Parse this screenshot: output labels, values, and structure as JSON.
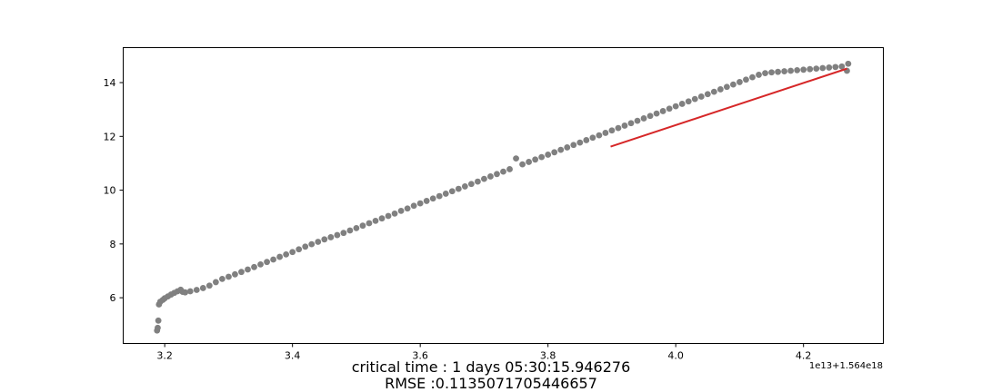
{
  "chart_data": {
    "type": "scatter",
    "title": "",
    "xlabel": "",
    "ylabel": "",
    "x_offset_label": "1e13+1.564e18",
    "xlim": [
      3.135,
      4.325
    ],
    "ylim": [
      4.3,
      15.3
    ],
    "x_ticks": [
      3.2,
      3.4,
      3.6,
      3.8,
      4.0,
      4.2
    ],
    "x_tick_labels": [
      "3.2",
      "3.4",
      "3.6",
      "3.8",
      "4.0",
      "4.2"
    ],
    "y_ticks": [
      6,
      8,
      10,
      12,
      14
    ],
    "y_tick_labels": [
      "6",
      "8",
      "10",
      "12",
      "14"
    ],
    "grid": false,
    "marker_color": "#808080",
    "series": [
      {
        "kind": "points",
        "color": "#808080",
        "points": [
          [
            3.188,
            4.78
          ],
          [
            3.189,
            4.88
          ],
          [
            3.19,
            5.15
          ],
          [
            3.191,
            5.75
          ],
          [
            3.193,
            5.85
          ],
          [
            3.197,
            5.92
          ],
          [
            3.2,
            5.98
          ],
          [
            3.205,
            6.05
          ],
          [
            3.21,
            6.12
          ],
          [
            3.215,
            6.18
          ],
          [
            3.22,
            6.24
          ],
          [
            3.225,
            6.3
          ],
          [
            3.228,
            6.22
          ],
          [
            3.232,
            6.2
          ],
          [
            3.24,
            6.24
          ],
          [
            3.25,
            6.29
          ],
          [
            3.26,
            6.36
          ],
          [
            3.27,
            6.45
          ],
          [
            3.28,
            6.58
          ],
          [
            3.29,
            6.7
          ],
          [
            3.3,
            6.78
          ],
          [
            3.31,
            6.87
          ],
          [
            3.32,
            6.96
          ],
          [
            3.33,
            7.05
          ],
          [
            3.34,
            7.14
          ],
          [
            3.35,
            7.24
          ],
          [
            3.36,
            7.33
          ],
          [
            3.37,
            7.42
          ],
          [
            3.38,
            7.52
          ],
          [
            3.39,
            7.61
          ],
          [
            3.4,
            7.7
          ],
          [
            3.41,
            7.8
          ],
          [
            3.42,
            7.9
          ],
          [
            3.43,
            7.99
          ],
          [
            3.44,
            8.08
          ],
          [
            3.45,
            8.17
          ],
          [
            3.46,
            8.25
          ],
          [
            3.47,
            8.33
          ],
          [
            3.48,
            8.41
          ],
          [
            3.49,
            8.5
          ],
          [
            3.5,
            8.59
          ],
          [
            3.51,
            8.68
          ],
          [
            3.52,
            8.77
          ],
          [
            3.53,
            8.86
          ],
          [
            3.54,
            8.95
          ],
          [
            3.55,
            9.04
          ],
          [
            3.56,
            9.13
          ],
          [
            3.57,
            9.23
          ],
          [
            3.58,
            9.32
          ],
          [
            3.59,
            9.42
          ],
          [
            3.6,
            9.51
          ],
          [
            3.61,
            9.6
          ],
          [
            3.62,
            9.69
          ],
          [
            3.63,
            9.78
          ],
          [
            3.64,
            9.87
          ],
          [
            3.65,
            9.96
          ],
          [
            3.66,
            10.05
          ],
          [
            3.67,
            10.14
          ],
          [
            3.68,
            10.23
          ],
          [
            3.69,
            10.32
          ],
          [
            3.7,
            10.42
          ],
          [
            3.71,
            10.51
          ],
          [
            3.72,
            10.6
          ],
          [
            3.73,
            10.69
          ],
          [
            3.74,
            10.78
          ],
          [
            3.75,
            11.18
          ],
          [
            3.76,
            10.96
          ],
          [
            3.77,
            11.05
          ],
          [
            3.78,
            11.14
          ],
          [
            3.79,
            11.23
          ],
          [
            3.8,
            11.32
          ],
          [
            3.81,
            11.41
          ],
          [
            3.82,
            11.5
          ],
          [
            3.83,
            11.59
          ],
          [
            3.84,
            11.68
          ],
          [
            3.85,
            11.77
          ],
          [
            3.86,
            11.86
          ],
          [
            3.87,
            11.95
          ],
          [
            3.88,
            12.04
          ],
          [
            3.89,
            12.13
          ],
          [
            3.9,
            12.22
          ],
          [
            3.91,
            12.31
          ],
          [
            3.92,
            12.4
          ],
          [
            3.93,
            12.49
          ],
          [
            3.94,
            12.58
          ],
          [
            3.95,
            12.67
          ],
          [
            3.96,
            12.76
          ],
          [
            3.97,
            12.85
          ],
          [
            3.98,
            12.94
          ],
          [
            3.99,
            13.03
          ],
          [
            4.0,
            13.12
          ],
          [
            4.01,
            13.21
          ],
          [
            4.02,
            13.3
          ],
          [
            4.03,
            13.39
          ],
          [
            4.04,
            13.48
          ],
          [
            4.05,
            13.57
          ],
          [
            4.06,
            13.66
          ],
          [
            4.07,
            13.75
          ],
          [
            4.08,
            13.84
          ],
          [
            4.09,
            13.93
          ],
          [
            4.1,
            14.02
          ],
          [
            4.11,
            14.11
          ],
          [
            4.12,
            14.2
          ],
          [
            4.13,
            14.29
          ],
          [
            4.14,
            14.35
          ],
          [
            4.15,
            14.38
          ],
          [
            4.16,
            14.4
          ],
          [
            4.17,
            14.42
          ],
          [
            4.18,
            14.44
          ],
          [
            4.19,
            14.46
          ],
          [
            4.2,
            14.48
          ],
          [
            4.21,
            14.5
          ],
          [
            4.22,
            14.52
          ],
          [
            4.23,
            14.54
          ],
          [
            4.24,
            14.56
          ],
          [
            4.25,
            14.58
          ],
          [
            4.26,
            14.6
          ],
          [
            4.268,
            14.44
          ],
          [
            4.27,
            14.7
          ]
        ]
      },
      {
        "kind": "line",
        "color": "#d62728",
        "points": [
          [
            3.898,
            11.62
          ],
          [
            4.268,
            14.52
          ]
        ]
      }
    ]
  },
  "captions": {
    "line1": "critical time : 1 days 05:30:15.946276",
    "line2": "RMSE :0.1135071705446657"
  }
}
